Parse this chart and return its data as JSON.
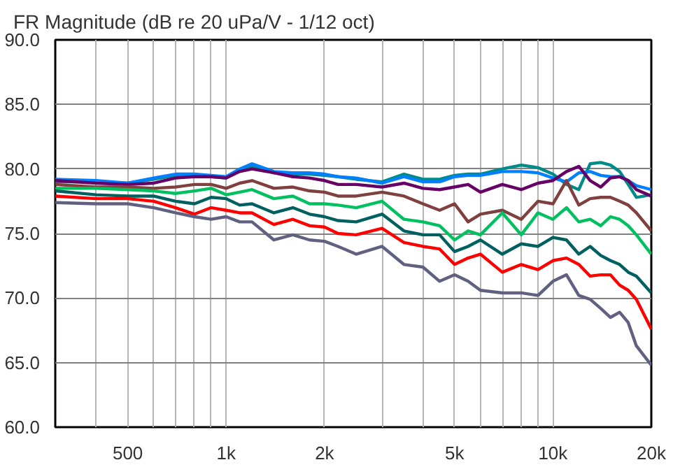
{
  "chart_data": {
    "type": "line",
    "title": "FR Magnitude (dB re 20 uPa/V - 1/12 oct)",
    "log": "x",
    "grid": true,
    "marker": "none",
    "line_style": "solid",
    "x": [
      300,
      400,
      500,
      600,
      700,
      800,
      900,
      1000,
      1100,
      1200,
      1400,
      1600,
      1800,
      2000,
      2200,
      2500,
      3000,
      3500,
      4000,
      4500,
      5000,
      5500,
      6000,
      7000,
      8000,
      9000,
      10000,
      11000,
      12000,
      13000,
      14000,
      15000,
      16000,
      17000,
      18000,
      20000
    ],
    "xlim": [
      300,
      20000
    ],
    "xticks": [
      {
        "value": 400,
        "label": null
      },
      {
        "value": 500,
        "label": "500"
      },
      {
        "value": 600,
        "label": null
      },
      {
        "value": 700,
        "label": null
      },
      {
        "value": 800,
        "label": null
      },
      {
        "value": 900,
        "label": null
      },
      {
        "value": 1000,
        "label": "1k"
      },
      {
        "value": 2000,
        "label": "2k"
      },
      {
        "value": 3000,
        "label": null
      },
      {
        "value": 4000,
        "label": null
      },
      {
        "value": 5000,
        "label": "5k"
      },
      {
        "value": 6000,
        "label": null
      },
      {
        "value": 7000,
        "label": null
      },
      {
        "value": 8000,
        "label": null
      },
      {
        "value": 9000,
        "label": null
      },
      {
        "value": 10000,
        "label": "10k"
      },
      {
        "value": 20000,
        "label": "20k"
      }
    ],
    "ylim": [
      60,
      90
    ],
    "yticks": [
      {
        "value": 60,
        "label": "60.0"
      },
      {
        "value": 65,
        "label": "65.0"
      },
      {
        "value": 70,
        "label": "70.0"
      },
      {
        "value": 75,
        "label": "75.0"
      },
      {
        "value": 80,
        "label": "80.0"
      },
      {
        "value": 85,
        "label": "85.0"
      },
      {
        "value": 90,
        "label": "90.0"
      }
    ],
    "series": [
      {
        "color": "#008b8b",
        "values": [
          79.0,
          79.0,
          78.9,
          79.2,
          79.5,
          79.5,
          79.4,
          79.3,
          79.9,
          80.2,
          79.7,
          79.6,
          79.6,
          79.5,
          79.4,
          79.2,
          79.0,
          79.6,
          79.2,
          79.2,
          79.5,
          79.6,
          79.6,
          80.0,
          80.3,
          80.1,
          79.6,
          78.8,
          78.4,
          80.4,
          80.5,
          80.3,
          79.8,
          78.8,
          77.8,
          78.0
        ]
      },
      {
        "color": "#0080ff",
        "values": [
          79.2,
          79.1,
          78.9,
          79.3,
          79.6,
          79.6,
          79.5,
          79.4,
          80.0,
          80.4,
          79.8,
          79.7,
          79.7,
          79.6,
          79.4,
          79.3,
          78.9,
          79.4,
          79.0,
          79.0,
          79.4,
          79.5,
          79.5,
          79.8,
          79.8,
          79.7,
          79.3,
          79.0,
          79.7,
          79.8,
          79.5,
          79.4,
          79.4,
          79.1,
          78.7,
          78.4
        ]
      },
      {
        "color": "#660066",
        "values": [
          79.1,
          78.9,
          78.8,
          78.9,
          79.3,
          79.4,
          79.4,
          79.3,
          79.8,
          80.0,
          79.7,
          79.4,
          79.3,
          79.1,
          78.8,
          78.8,
          78.6,
          78.9,
          78.5,
          78.4,
          78.6,
          78.8,
          78.2,
          78.8,
          78.4,
          78.9,
          79.1,
          79.8,
          80.2,
          79.1,
          78.6,
          79.3,
          79.4,
          79.1,
          78.4,
          77.9
        ]
      },
      {
        "color": "#804040",
        "values": [
          78.8,
          78.6,
          78.6,
          78.5,
          78.6,
          78.8,
          78.8,
          78.5,
          78.9,
          79.1,
          78.5,
          78.6,
          78.3,
          78.2,
          77.9,
          77.9,
          78.2,
          77.9,
          77.3,
          76.8,
          77.3,
          75.9,
          76.5,
          76.8,
          76.1,
          77.5,
          77.3,
          79.1,
          77.2,
          77.7,
          77.8,
          77.8,
          77.5,
          77.2,
          76.6,
          75.2
        ]
      },
      {
        "color": "#00c060",
        "values": [
          78.5,
          78.5,
          78.4,
          78.3,
          78.1,
          78.3,
          78.5,
          78.0,
          78.2,
          78.4,
          77.7,
          77.9,
          77.3,
          77.3,
          77.2,
          77.0,
          77.5,
          76.1,
          75.9,
          75.6,
          74.5,
          75.2,
          74.9,
          76.6,
          74.9,
          76.6,
          76.1,
          77.0,
          75.9,
          76.1,
          75.6,
          76.3,
          76.1,
          75.6,
          74.9,
          73.4
        ]
      },
      {
        "color": "#006060",
        "values": [
          78.3,
          78.0,
          77.9,
          77.9,
          77.5,
          77.3,
          77.8,
          77.7,
          77.2,
          77.3,
          76.6,
          77.0,
          76.5,
          76.3,
          76.0,
          75.9,
          76.5,
          75.2,
          74.9,
          74.9,
          73.6,
          74.0,
          74.5,
          73.4,
          74.2,
          74.0,
          74.7,
          74.5,
          73.4,
          74.0,
          73.3,
          72.9,
          72.6,
          72.0,
          71.7,
          70.4
        ]
      },
      {
        "color": "#ff0000",
        "values": [
          77.9,
          77.7,
          77.7,
          77.5,
          77.0,
          76.5,
          77.0,
          76.8,
          76.6,
          76.6,
          75.7,
          76.1,
          75.6,
          75.5,
          75.0,
          74.9,
          75.4,
          74.3,
          74.0,
          73.8,
          72.6,
          73.1,
          73.4,
          72.0,
          72.6,
          72.2,
          72.9,
          73.1,
          72.6,
          71.7,
          71.8,
          71.8,
          71.0,
          70.6,
          69.9,
          67.6
        ]
      },
      {
        "color": "#606080",
        "values": [
          77.4,
          77.3,
          77.3,
          77.0,
          76.6,
          76.3,
          76.1,
          76.3,
          75.9,
          75.9,
          74.5,
          74.9,
          74.5,
          74.4,
          74.0,
          73.4,
          74.0,
          72.6,
          72.4,
          71.3,
          71.8,
          71.3,
          70.6,
          70.4,
          70.4,
          70.2,
          71.3,
          71.8,
          70.2,
          69.9,
          69.2,
          68.5,
          68.9,
          68.1,
          66.3,
          64.8
        ]
      }
    ]
  }
}
